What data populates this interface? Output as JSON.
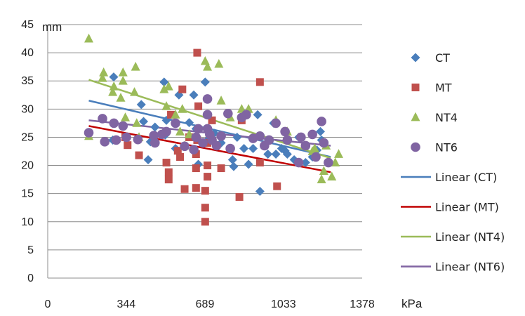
{
  "chart_data": {
    "type": "scatter",
    "title": "",
    "xlabel": "kPa",
    "ylabel": "mm",
    "xlim": [
      0,
      1378
    ],
    "ylim": [
      0,
      45
    ],
    "x_ticks": [
      0,
      344,
      689,
      1033,
      1378
    ],
    "x_tick_labels": [
      "0",
      "344",
      "689",
      "1033",
      "1378"
    ],
    "y_ticks": [
      0,
      5,
      10,
      15,
      20,
      25,
      30,
      35,
      40,
      45
    ],
    "y_tick_labels": [
      "0",
      "5",
      "10",
      "15",
      "20",
      "25",
      "30",
      "35",
      "40",
      "45"
    ],
    "grid": "horizontal",
    "legend_position": "right",
    "series": [
      {
        "name": "CT",
        "marker": "diamond",
        "color": "#4a7ebb",
        "points": [
          [
            289,
            35.7
          ],
          [
            285,
            24.5
          ],
          [
            410,
            30.8
          ],
          [
            420,
            27.8
          ],
          [
            440,
            21.0
          ],
          [
            450,
            24.2
          ],
          [
            470,
            26.8
          ],
          [
            510,
            34.8
          ],
          [
            515,
            25.4
          ],
          [
            520,
            28.0
          ],
          [
            560,
            23.0
          ],
          [
            575,
            32.5
          ],
          [
            620,
            27.6
          ],
          [
            640,
            32.5
          ],
          [
            650,
            26.5
          ],
          [
            660,
            20.2
          ],
          [
            690,
            34.8
          ],
          [
            700,
            24.5
          ],
          [
            730,
            25.7
          ],
          [
            760,
            24.0
          ],
          [
            810,
            21.0
          ],
          [
            815,
            19.8
          ],
          [
            830,
            25.0
          ],
          [
            860,
            23.0
          ],
          [
            880,
            20.2
          ],
          [
            900,
            23.0
          ],
          [
            920,
            29.0
          ],
          [
            930,
            15.4
          ],
          [
            965,
            22.0
          ],
          [
            990,
            27.5
          ],
          [
            1000,
            22.0
          ],
          [
            1025,
            23.0
          ],
          [
            1040,
            22.6
          ],
          [
            1050,
            22.0
          ],
          [
            1080,
            21.0
          ],
          [
            1100,
            25.0
          ],
          [
            1130,
            20.5
          ],
          [
            1160,
            21.5
          ],
          [
            1180,
            22.7
          ],
          [
            1195,
            26.0
          ],
          [
            1200,
            24.5
          ]
        ]
      },
      {
        "name": "MT",
        "marker": "square",
        "color": "#c0504d",
        "points": [
          [
            340,
            25.0
          ],
          [
            350,
            23.6
          ],
          [
            400,
            21.8
          ],
          [
            520,
            20.5
          ],
          [
            530,
            17.5
          ],
          [
            530,
            18.8
          ],
          [
            540,
            29.0
          ],
          [
            570,
            22.6
          ],
          [
            580,
            21.5
          ],
          [
            590,
            33.5
          ],
          [
            600,
            15.8
          ],
          [
            620,
            25.0
          ],
          [
            650,
            16.0
          ],
          [
            650,
            19.5
          ],
          [
            650,
            22.0
          ],
          [
            655,
            40.0
          ],
          [
            655,
            24.5
          ],
          [
            660,
            30.5
          ],
          [
            690,
            12.5
          ],
          [
            690,
            10.0
          ],
          [
            690,
            15.5
          ],
          [
            700,
            18.0
          ],
          [
            700,
            20.0
          ],
          [
            700,
            24.0
          ],
          [
            720,
            28.0
          ],
          [
            760,
            19.5
          ],
          [
            840,
            14.4
          ],
          [
            850,
            28.0
          ],
          [
            930,
            34.8
          ],
          [
            930,
            20.5
          ],
          [
            1005,
            16.3
          ]
        ]
      },
      {
        "name": "NT4",
        "marker": "triangle",
        "color": "#9bbb59",
        "points": [
          [
            180,
            42.5
          ],
          [
            180,
            25.2
          ],
          [
            240,
            35.5
          ],
          [
            245,
            36.5
          ],
          [
            285,
            33.0
          ],
          [
            290,
            34.0
          ],
          [
            320,
            32.0
          ],
          [
            330,
            35.0
          ],
          [
            330,
            36.5
          ],
          [
            340,
            28.5
          ],
          [
            380,
            33.0
          ],
          [
            385,
            37.5
          ],
          [
            390,
            27.5
          ],
          [
            400,
            25.0
          ],
          [
            510,
            33.5
          ],
          [
            520,
            30.5
          ],
          [
            530,
            34.0
          ],
          [
            560,
            29.0
          ],
          [
            580,
            26.0
          ],
          [
            590,
            30.0
          ],
          [
            600,
            23.5
          ],
          [
            620,
            25.5
          ],
          [
            690,
            38.5
          ],
          [
            700,
            37.5
          ],
          [
            750,
            38.0
          ],
          [
            760,
            31.5
          ],
          [
            800,
            28.5
          ],
          [
            850,
            30.0
          ],
          [
            880,
            30.0
          ],
          [
            1000,
            28.0
          ],
          [
            1050,
            26.0
          ],
          [
            1160,
            22.5
          ],
          [
            1170,
            23.0
          ],
          [
            1200,
            17.5
          ],
          [
            1210,
            19.0
          ],
          [
            1220,
            23.5
          ],
          [
            1245,
            18.0
          ],
          [
            1260,
            20.5
          ],
          [
            1275,
            22.0
          ]
        ]
      },
      {
        "name": "NT6",
        "marker": "circle",
        "color": "#8064a2",
        "points": [
          [
            180,
            25.8
          ],
          [
            240,
            28.3
          ],
          [
            250,
            24.2
          ],
          [
            290,
            27.5
          ],
          [
            300,
            24.5
          ],
          [
            330,
            27.0
          ],
          [
            345,
            25.0
          ],
          [
            395,
            24.6
          ],
          [
            465,
            25.3
          ],
          [
            470,
            24.0
          ],
          [
            500,
            25.5
          ],
          [
            520,
            26.0
          ],
          [
            560,
            27.5
          ],
          [
            600,
            23.4
          ],
          [
            640,
            22.8
          ],
          [
            650,
            25.0
          ],
          [
            660,
            26.5
          ],
          [
            680,
            24.0
          ],
          [
            700,
            31.8
          ],
          [
            700,
            29.0
          ],
          [
            700,
            26.5
          ],
          [
            710,
            25.5
          ],
          [
            720,
            24.5
          ],
          [
            740,
            23.5
          ],
          [
            760,
            25.2
          ],
          [
            790,
            29.2
          ],
          [
            800,
            23.0
          ],
          [
            850,
            28.5
          ],
          [
            870,
            29.0
          ],
          [
            900,
            24.8
          ],
          [
            930,
            25.2
          ],
          [
            950,
            23.5
          ],
          [
            970,
            24.5
          ],
          [
            1000,
            27.5
          ],
          [
            1040,
            26.0
          ],
          [
            1050,
            24.5
          ],
          [
            1100,
            20.5
          ],
          [
            1110,
            25.0
          ],
          [
            1130,
            23.5
          ],
          [
            1160,
            25.5
          ],
          [
            1175,
            21.5
          ],
          [
            1200,
            27.8
          ],
          [
            1210,
            24.0
          ],
          [
            1230,
            20.5
          ]
        ]
      }
    ],
    "trendlines": [
      {
        "name": "Linear (CT)",
        "color": "#4a7ebb",
        "x": [
          180,
          1240
        ],
        "y": [
          31.5,
          21.5
        ]
      },
      {
        "name": "Linear (MT)",
        "color": "#c00000",
        "x": [
          180,
          1240
        ],
        "y": [
          27.0,
          18.8
        ]
      },
      {
        "name": "Linear (NT4)",
        "color": "#9bbb59",
        "x": [
          180,
          1240
        ],
        "y": [
          35.2,
          21.3
        ]
      },
      {
        "name": "Linear (NT6)",
        "color": "#8064a2",
        "x": [
          180,
          1240
        ],
        "y": [
          28.0,
          23.5
        ]
      }
    ],
    "legend": [
      {
        "label": "CT",
        "kind": "diamond",
        "color": "#4a7ebb"
      },
      {
        "label": "MT",
        "kind": "square",
        "color": "#c0504d"
      },
      {
        "label": "NT4",
        "kind": "triangle",
        "color": "#9bbb59"
      },
      {
        "label": "NT6",
        "kind": "circle",
        "color": "#8064a2"
      },
      {
        "label": "Linear (CT)",
        "kind": "line",
        "color": "#4a7ebb"
      },
      {
        "label": "Linear (MT)",
        "kind": "line",
        "color": "#c00000"
      },
      {
        "label": "Linear (NT4)",
        "kind": "line",
        "color": "#9bbb59"
      },
      {
        "label": "Linear (NT6)",
        "kind": "line",
        "color": "#8064a2"
      }
    ]
  }
}
